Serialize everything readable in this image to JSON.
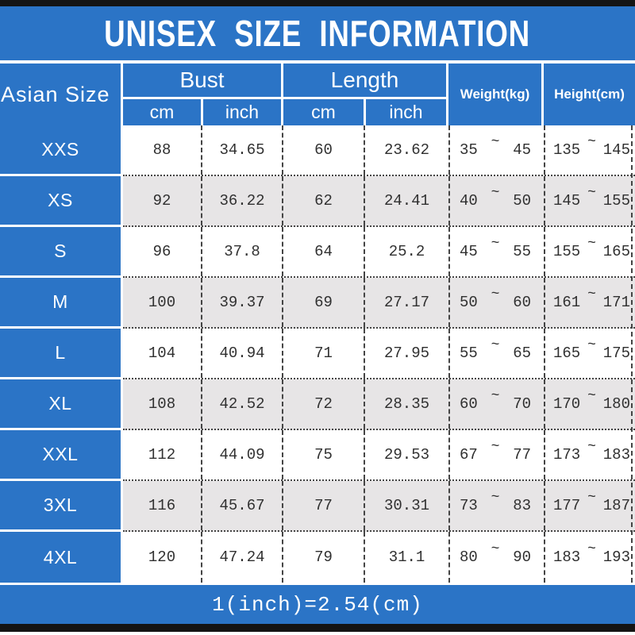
{
  "title": "UNISEX SIZE INFORMATION",
  "footer_note": "1(inch)=2.54(cm)",
  "colors": {
    "accent_blue": "#2b74c6",
    "bar_black": "#141414",
    "alt_row_gray": "#e7e5e6",
    "text_dark": "#303030",
    "header_text": "#ffffff"
  },
  "table": {
    "corner_label": "Asian Size",
    "groups": [
      {
        "label": "Bust",
        "sub": [
          "cm",
          "inch"
        ]
      },
      {
        "label": "Length",
        "sub": [
          "cm",
          "inch"
        ]
      }
    ],
    "weight_header": "Weight(kg)",
    "height_header": "Height(cm)",
    "range_separator": "~",
    "rows": [
      {
        "size": "XXS",
        "bust_cm": "88",
        "bust_inch": "34.65",
        "length_cm": "60",
        "length_inch": "23.62",
        "weight_min": "35",
        "weight_max": "45",
        "height_min": "135",
        "height_max": "145"
      },
      {
        "size": "XS",
        "bust_cm": "92",
        "bust_inch": "36.22",
        "length_cm": "62",
        "length_inch": "24.41",
        "weight_min": "40",
        "weight_max": "50",
        "height_min": "145",
        "height_max": "155"
      },
      {
        "size": "S",
        "bust_cm": "96",
        "bust_inch": "37.8",
        "length_cm": "64",
        "length_inch": "25.2",
        "weight_min": "45",
        "weight_max": "55",
        "height_min": "155",
        "height_max": "165"
      },
      {
        "size": "M",
        "bust_cm": "100",
        "bust_inch": "39.37",
        "length_cm": "69",
        "length_inch": "27.17",
        "weight_min": "50",
        "weight_max": "60",
        "height_min": "161",
        "height_max": "171"
      },
      {
        "size": "L",
        "bust_cm": "104",
        "bust_inch": "40.94",
        "length_cm": "71",
        "length_inch": "27.95",
        "weight_min": "55",
        "weight_max": "65",
        "height_min": "165",
        "height_max": "175"
      },
      {
        "size": "XL",
        "bust_cm": "108",
        "bust_inch": "42.52",
        "length_cm": "72",
        "length_inch": "28.35",
        "weight_min": "60",
        "weight_max": "70",
        "height_min": "170",
        "height_max": "180"
      },
      {
        "size": "XXL",
        "bust_cm": "112",
        "bust_inch": "44.09",
        "length_cm": "75",
        "length_inch": "29.53",
        "weight_min": "67",
        "weight_max": "77",
        "height_min": "173",
        "height_max": "183"
      },
      {
        "size": "3XL",
        "bust_cm": "116",
        "bust_inch": "45.67",
        "length_cm": "77",
        "length_inch": "30.31",
        "weight_min": "73",
        "weight_max": "83",
        "height_min": "177",
        "height_max": "187"
      },
      {
        "size": "4XL",
        "bust_cm": "120",
        "bust_inch": "47.24",
        "length_cm": "79",
        "length_inch": "31.1",
        "weight_min": "80",
        "weight_max": "90",
        "height_min": "183",
        "height_max": "193"
      }
    ]
  }
}
